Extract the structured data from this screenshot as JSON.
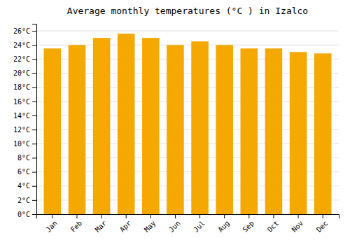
{
  "chart_data": {
    "type": "bar",
    "title": "Average monthly temperatures (°C ) in Izalco",
    "categories": [
      "Jan",
      "Feb",
      "Mar",
      "Apr",
      "May",
      "Jun",
      "Jul",
      "Aug",
      "Sep",
      "Oct",
      "Nov",
      "Dec"
    ],
    "values": [
      23.5,
      24.0,
      25.0,
      25.6,
      25.0,
      24.0,
      24.5,
      24.0,
      23.5,
      23.5,
      23.0,
      22.8
    ],
    "color": "#F5A800",
    "ylim": [
      0,
      27
    ],
    "yticks": [
      {
        "value": 0,
        "label": "0°C"
      },
      {
        "value": 2,
        "label": "2°C"
      },
      {
        "value": 4,
        "label": "4°C"
      },
      {
        "value": 6,
        "label": "6°C"
      },
      {
        "value": 8,
        "label": "8°C"
      },
      {
        "value": 10,
        "label": "10°C"
      },
      {
        "value": 12,
        "label": "12°C"
      },
      {
        "value": 14,
        "label": "14°C"
      },
      {
        "value": 16,
        "label": "16°C"
      },
      {
        "value": 18,
        "label": "18°C"
      },
      {
        "value": 20,
        "label": "20°C"
      },
      {
        "value": 22,
        "label": "22°C"
      },
      {
        "value": 24,
        "label": "24°C"
      },
      {
        "value": 26,
        "label": "26°C"
      }
    ],
    "grid": true
  }
}
